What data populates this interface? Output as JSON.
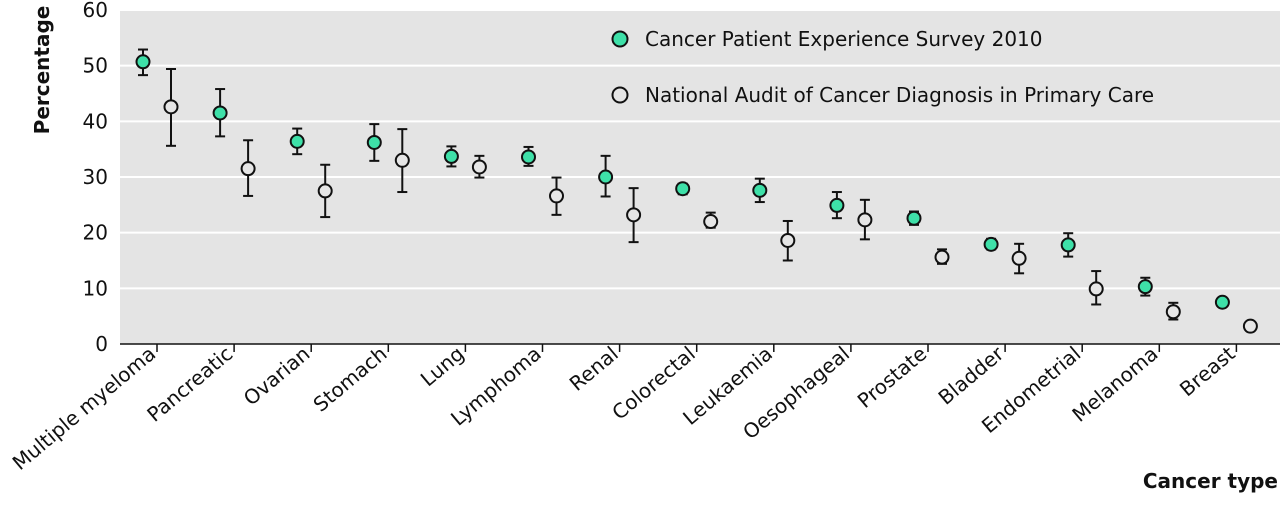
{
  "chart_data": {
    "type": "scatter",
    "xlabel": "Cancer type",
    "ylabel": "Percentage",
    "ylim": [
      0,
      60
    ],
    "yticks": [
      0,
      10,
      20,
      30,
      40,
      50,
      60
    ],
    "grid": "horizontal",
    "legend_position": "top-right",
    "categories": [
      "Multiple myeloma",
      "Pancreatic",
      "Ovarian",
      "Stomach",
      "Lung",
      "Lymphoma",
      "Renal",
      "Colorectal",
      "Leukaemia",
      "Oesophageal",
      "Prostate",
      "Bladder",
      "Endometrial",
      "Melanoma",
      "Breast"
    ],
    "series": [
      {
        "name": "Cancer Patient Experience Survey 2010",
        "color": "#3ee0a8",
        "values": [
          50.7,
          41.5,
          36.4,
          36.2,
          33.7,
          33.6,
          30.0,
          27.9,
          27.6,
          24.9,
          22.6,
          17.9,
          17.8,
          10.3,
          7.5
        ],
        "lower": [
          48.3,
          37.3,
          34.1,
          32.9,
          31.9,
          32.0,
          26.5,
          26.9,
          25.5,
          22.6,
          21.4,
          17.0,
          15.7,
          8.7,
          6.7
        ],
        "upper": [
          52.9,
          45.8,
          38.7,
          39.5,
          35.5,
          35.4,
          33.8,
          28.8,
          29.7,
          27.3,
          23.8,
          18.9,
          19.9,
          11.9,
          8.3
        ]
      },
      {
        "name": "National Audit of Cancer Diagnosis in Primary Care",
        "color": "#e6e6e6",
        "values": [
          42.6,
          31.5,
          27.5,
          33.0,
          31.8,
          26.6,
          23.2,
          22.0,
          18.6,
          22.3,
          15.6,
          15.4,
          9.9,
          5.8,
          3.2
        ],
        "lower": [
          35.6,
          26.6,
          22.8,
          27.3,
          29.9,
          23.2,
          18.3,
          20.9,
          15.0,
          18.8,
          14.4,
          12.7,
          7.1,
          4.4,
          2.5
        ],
        "upper": [
          49.4,
          36.6,
          32.2,
          38.6,
          33.8,
          29.9,
          28.0,
          23.6,
          22.1,
          25.9,
          17.0,
          18.0,
          13.1,
          7.4,
          4.0
        ]
      }
    ]
  }
}
